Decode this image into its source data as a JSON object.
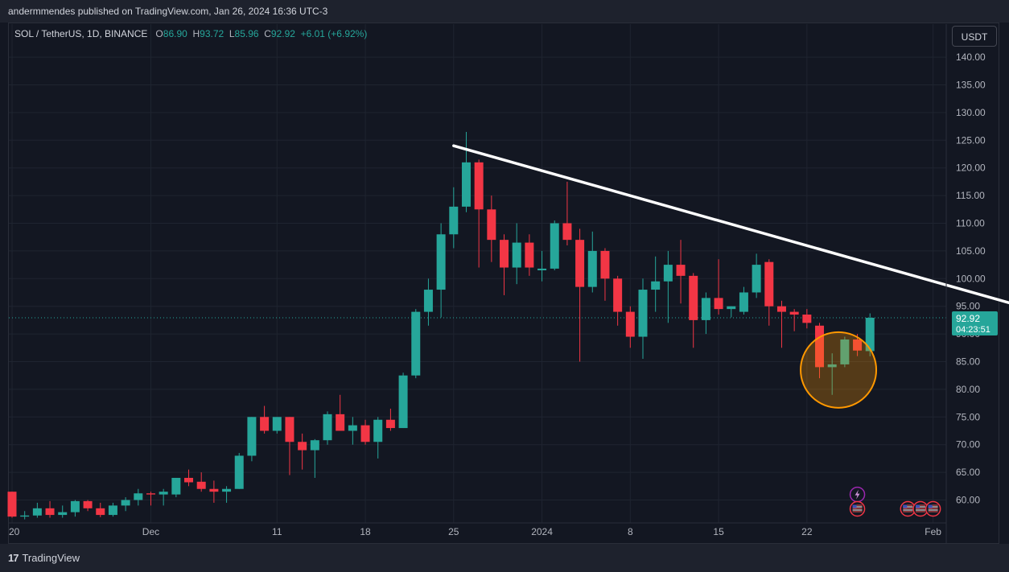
{
  "publisher_line": "andermmendes published on TradingView.com, Jan 26, 2024 16:36 UTC-3",
  "legend": {
    "symbol": "SOL / TetherUS, 1D, BINANCE",
    "open_key": "O",
    "open": "86.90",
    "high_key": "H",
    "high": "93.72",
    "low_key": "L",
    "low": "85.96",
    "close_key": "C",
    "close": "92.92",
    "change": "+6.01 (+6.92%)"
  },
  "unit_button": "USDT",
  "footer": {
    "logo_mark": "17",
    "brand": "TradingView"
  },
  "colors": {
    "up": "#26a69a",
    "down": "#f23645",
    "background": "#131722",
    "trendline": "#ffffff",
    "highlight": "#ff9800"
  },
  "chart_data": {
    "type": "candlestick",
    "y_ticks": [
      "140.00",
      "135.00",
      "130.00",
      "125.00",
      "120.00",
      "115.00",
      "110.00",
      "105.00",
      "100.00",
      "95.00",
      "90.00",
      "85.00",
      "80.00",
      "75.00",
      "70.00",
      "65.00",
      "60.00"
    ],
    "ylim": [
      55,
      142
    ],
    "x_tick_labels": [
      "20",
      "Dec",
      "11",
      "18",
      "25",
      "2024",
      "8",
      "15",
      "22",
      "Feb"
    ],
    "x_tick_index": [
      0,
      11,
      21,
      28,
      35,
      42,
      49,
      56,
      63,
      73
    ],
    "last_price_label": "92.92",
    "countdown_label": "04:23:51",
    "candles": [
      {
        "o": 61.5,
        "h": 61.5,
        "l": 56.8,
        "c": 57.0
      },
      {
        "o": 57.0,
        "h": 58.0,
        "l": 56.5,
        "c": 57.2
      },
      {
        "o": 57.2,
        "h": 59.5,
        "l": 56.8,
        "c": 58.5
      },
      {
        "o": 58.5,
        "h": 59.8,
        "l": 56.8,
        "c": 57.3
      },
      {
        "o": 57.3,
        "h": 59.0,
        "l": 56.8,
        "c": 57.8
      },
      {
        "o": 57.8,
        "h": 60.0,
        "l": 57.0,
        "c": 59.8
      },
      {
        "o": 59.8,
        "h": 60.0,
        "l": 58.0,
        "c": 58.5
      },
      {
        "o": 58.5,
        "h": 59.5,
        "l": 56.9,
        "c": 57.3
      },
      {
        "o": 57.3,
        "h": 59.5,
        "l": 57.0,
        "c": 59.0
      },
      {
        "o": 59.0,
        "h": 60.5,
        "l": 58.0,
        "c": 60.0
      },
      {
        "o": 60.0,
        "h": 62.0,
        "l": 59.0,
        "c": 61.2
      },
      {
        "o": 61.2,
        "h": 61.5,
        "l": 59.0,
        "c": 61.0
      },
      {
        "o": 61.0,
        "h": 62.0,
        "l": 59.0,
        "c": 61.5
      },
      {
        "o": 61.0,
        "h": 64.0,
        "l": 60.5,
        "c": 64.0
      },
      {
        "o": 64.0,
        "h": 65.5,
        "l": 62.5,
        "c": 63.2
      },
      {
        "o": 63.3,
        "h": 65.0,
        "l": 61.5,
        "c": 62.0
      },
      {
        "o": 62.0,
        "h": 63.5,
        "l": 59.5,
        "c": 61.5
      },
      {
        "o": 61.5,
        "h": 62.5,
        "l": 59.5,
        "c": 62.0
      },
      {
        "o": 62.0,
        "h": 68.5,
        "l": 62.0,
        "c": 68.0
      },
      {
        "o": 68.0,
        "h": 75.0,
        "l": 67.0,
        "c": 75.0
      },
      {
        "o": 75.0,
        "h": 77.0,
        "l": 72.0,
        "c": 72.5
      },
      {
        "o": 72.5,
        "h": 75.0,
        "l": 72.0,
        "c": 75.0
      },
      {
        "o": 75.0,
        "h": 75.0,
        "l": 64.5,
        "c": 70.5
      },
      {
        "o": 70.5,
        "h": 72.0,
        "l": 65.5,
        "c": 69.0
      },
      {
        "o": 69.0,
        "h": 71.0,
        "l": 64.0,
        "c": 70.8
      },
      {
        "o": 70.8,
        "h": 76.0,
        "l": 70.0,
        "c": 75.5
      },
      {
        "o": 75.5,
        "h": 79.0,
        "l": 72.5,
        "c": 72.5
      },
      {
        "o": 72.5,
        "h": 75.0,
        "l": 70.0,
        "c": 73.5
      },
      {
        "o": 73.5,
        "h": 74.5,
        "l": 70.0,
        "c": 70.5
      },
      {
        "o": 70.5,
        "h": 75.0,
        "l": 67.5,
        "c": 74.5
      },
      {
        "o": 74.5,
        "h": 76.5,
        "l": 72.5,
        "c": 73.0
      },
      {
        "o": 73.0,
        "h": 83.0,
        "l": 73.0,
        "c": 82.5
      },
      {
        "o": 82.5,
        "h": 94.5,
        "l": 82.0,
        "c": 94.0
      },
      {
        "o": 94.0,
        "h": 100.0,
        "l": 91.5,
        "c": 98.0
      },
      {
        "o": 98.0,
        "h": 110.0,
        "l": 93.0,
        "c": 108.0
      },
      {
        "o": 108.0,
        "h": 116.5,
        "l": 105.5,
        "c": 113.0
      },
      {
        "o": 113.0,
        "h": 126.5,
        "l": 112.0,
        "c": 121.0
      },
      {
        "o": 121.0,
        "h": 121.5,
        "l": 102.0,
        "c": 112.5
      },
      {
        "o": 112.5,
        "h": 115.0,
        "l": 103.0,
        "c": 107.0
      },
      {
        "o": 107.0,
        "h": 108.0,
        "l": 97.0,
        "c": 102.0
      },
      {
        "o": 102.0,
        "h": 110.0,
        "l": 99.0,
        "c": 106.5
      },
      {
        "o": 106.5,
        "h": 108.0,
        "l": 100.5,
        "c": 102.0
      },
      {
        "o": 101.5,
        "h": 105.0,
        "l": 99.5,
        "c": 101.8
      },
      {
        "o": 101.8,
        "h": 110.5,
        "l": 101.5,
        "c": 110.0
      },
      {
        "o": 110.0,
        "h": 117.5,
        "l": 106.0,
        "c": 107.0
      },
      {
        "o": 107.0,
        "h": 109.0,
        "l": 85.0,
        "c": 98.5
      },
      {
        "o": 98.5,
        "h": 108.5,
        "l": 97.5,
        "c": 105.0
      },
      {
        "o": 105.0,
        "h": 105.5,
        "l": 96.0,
        "c": 100.0
      },
      {
        "o": 100.0,
        "h": 100.5,
        "l": 91.5,
        "c": 94.0
      },
      {
        "o": 94.0,
        "h": 95.0,
        "l": 87.5,
        "c": 89.5
      },
      {
        "o": 89.5,
        "h": 100.0,
        "l": 85.5,
        "c": 98.0
      },
      {
        "o": 98.0,
        "h": 104.0,
        "l": 94.0,
        "c": 99.5
      },
      {
        "o": 99.5,
        "h": 105.0,
        "l": 92.0,
        "c": 102.5
      },
      {
        "o": 102.5,
        "h": 107.0,
        "l": 95.5,
        "c": 100.5
      },
      {
        "o": 100.5,
        "h": 101.0,
        "l": 87.5,
        "c": 92.5
      },
      {
        "o": 92.5,
        "h": 97.5,
        "l": 90.0,
        "c": 96.5
      },
      {
        "o": 96.5,
        "h": 103.5,
        "l": 93.5,
        "c": 94.5
      },
      {
        "o": 94.5,
        "h": 95.0,
        "l": 93.0,
        "c": 95.0
      },
      {
        "o": 94.0,
        "h": 98.5,
        "l": 93.5,
        "c": 97.5
      },
      {
        "o": 97.5,
        "h": 104.5,
        "l": 96.5,
        "c": 102.5
      },
      {
        "o": 103.0,
        "h": 103.5,
        "l": 91.5,
        "c": 95.0
      },
      {
        "o": 95.0,
        "h": 96.0,
        "l": 87.5,
        "c": 94.0
      },
      {
        "o": 94.0,
        "h": 94.5,
        "l": 90.5,
        "c": 93.5
      },
      {
        "o": 93.5,
        "h": 94.5,
        "l": 91.0,
        "c": 92.0
      },
      {
        "o": 91.5,
        "h": 92.0,
        "l": 82.0,
        "c": 84.0
      },
      {
        "o": 84.0,
        "h": 86.5,
        "l": 79.0,
        "c": 84.5
      },
      {
        "o": 84.5,
        "h": 89.5,
        "l": 84.0,
        "c": 89.0
      },
      {
        "o": 89.0,
        "h": 90.0,
        "l": 86.0,
        "c": 87.0
      },
      {
        "o": 86.9,
        "h": 93.72,
        "l": 85.96,
        "c": 92.92
      }
    ],
    "trendline": {
      "from": {
        "i": 35,
        "y": 124.0
      },
      "to": {
        "i": 82.5,
        "y": 93.4
      }
    },
    "highlight_circle": {
      "i": 65.5,
      "y": 83.5
    },
    "event_markers": [
      {
        "icon": "lightning-icon",
        "i": 67,
        "y": 61.0
      },
      {
        "icon": "us-flag-icon",
        "i": 67,
        "y": 58.4
      },
      {
        "icon": "us-flag-icon",
        "i": 71,
        "y": 58.4
      },
      {
        "icon": "us-flag-icon",
        "i": 72,
        "y": 58.4
      },
      {
        "icon": "us-flag-icon",
        "i": 73,
        "y": 58.4
      }
    ]
  }
}
